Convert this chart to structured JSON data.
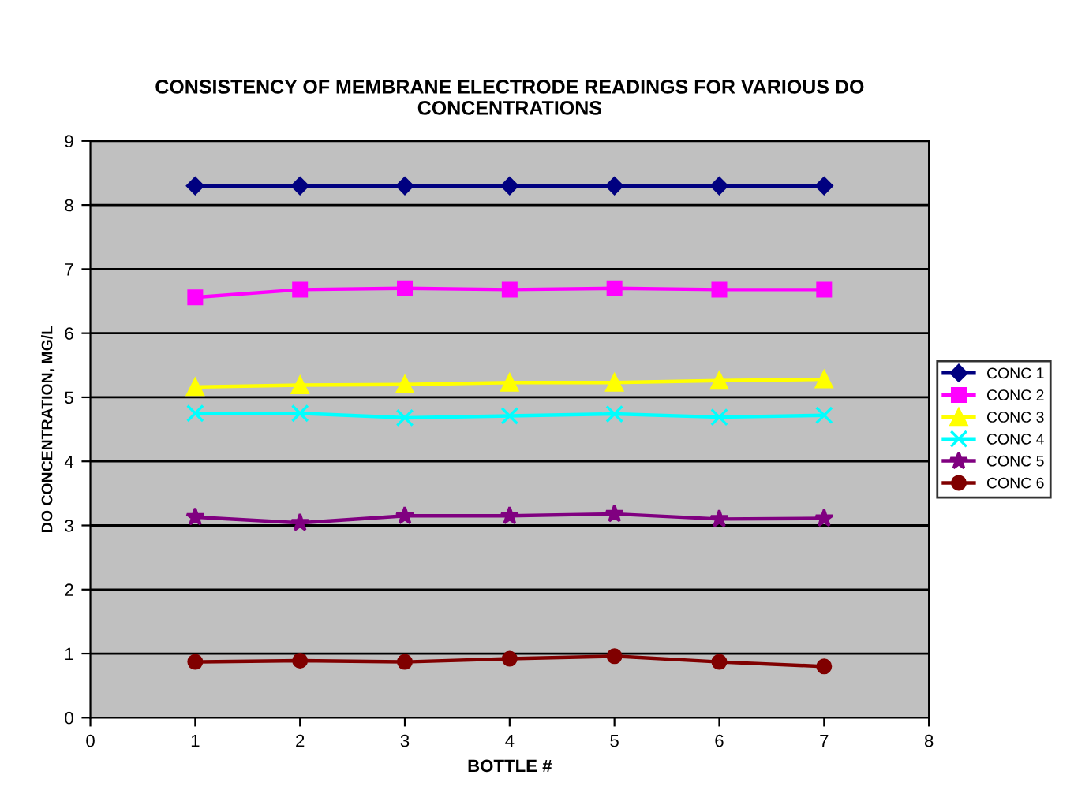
{
  "chart_data": {
    "type": "line",
    "title": "CONSISTENCY OF MEMBRANE ELECTRODE READINGS FOR VARIOUS DO\nCONCENTRATIONS",
    "xlabel": "BOTTLE #",
    "ylabel": "DO CONCENTRATION, MG/L",
    "x": [
      1,
      2,
      3,
      4,
      5,
      6,
      7
    ],
    "series": [
      {
        "name": "CONC 1",
        "color": "#000080",
        "marker": "diamond",
        "values": [
          8.3,
          8.3,
          8.3,
          8.3,
          8.3,
          8.3,
          8.3
        ]
      },
      {
        "name": "CONC 2",
        "color": "#ff00ff",
        "marker": "square",
        "values": [
          6.56,
          6.68,
          6.7,
          6.68,
          6.7,
          6.68,
          6.68
        ]
      },
      {
        "name": "CONC 3",
        "color": "#ffff00",
        "marker": "triangle",
        "values": [
          5.16,
          5.19,
          5.2,
          5.23,
          5.23,
          5.26,
          5.28
        ]
      },
      {
        "name": "CONC 4",
        "color": "#00ffff",
        "marker": "cross",
        "values": [
          4.75,
          4.75,
          4.68,
          4.71,
          4.74,
          4.69,
          4.72
        ]
      },
      {
        "name": "CONC 5",
        "color": "#800080",
        "marker": "star",
        "values": [
          3.13,
          3.04,
          3.15,
          3.15,
          3.18,
          3.1,
          3.11
        ]
      },
      {
        "name": "CONC 6",
        "color": "#800000",
        "marker": "circle",
        "values": [
          0.87,
          0.89,
          0.87,
          0.92,
          0.96,
          0.87,
          0.8
        ]
      }
    ],
    "xlim": [
      0,
      8
    ],
    "xticks": [
      0,
      1,
      2,
      3,
      4,
      5,
      6,
      7,
      8
    ],
    "ylim": [
      0,
      9
    ],
    "yticks": [
      0,
      1,
      2,
      3,
      4,
      5,
      6,
      7,
      8,
      9
    ],
    "grid": "y",
    "legend": "right"
  }
}
